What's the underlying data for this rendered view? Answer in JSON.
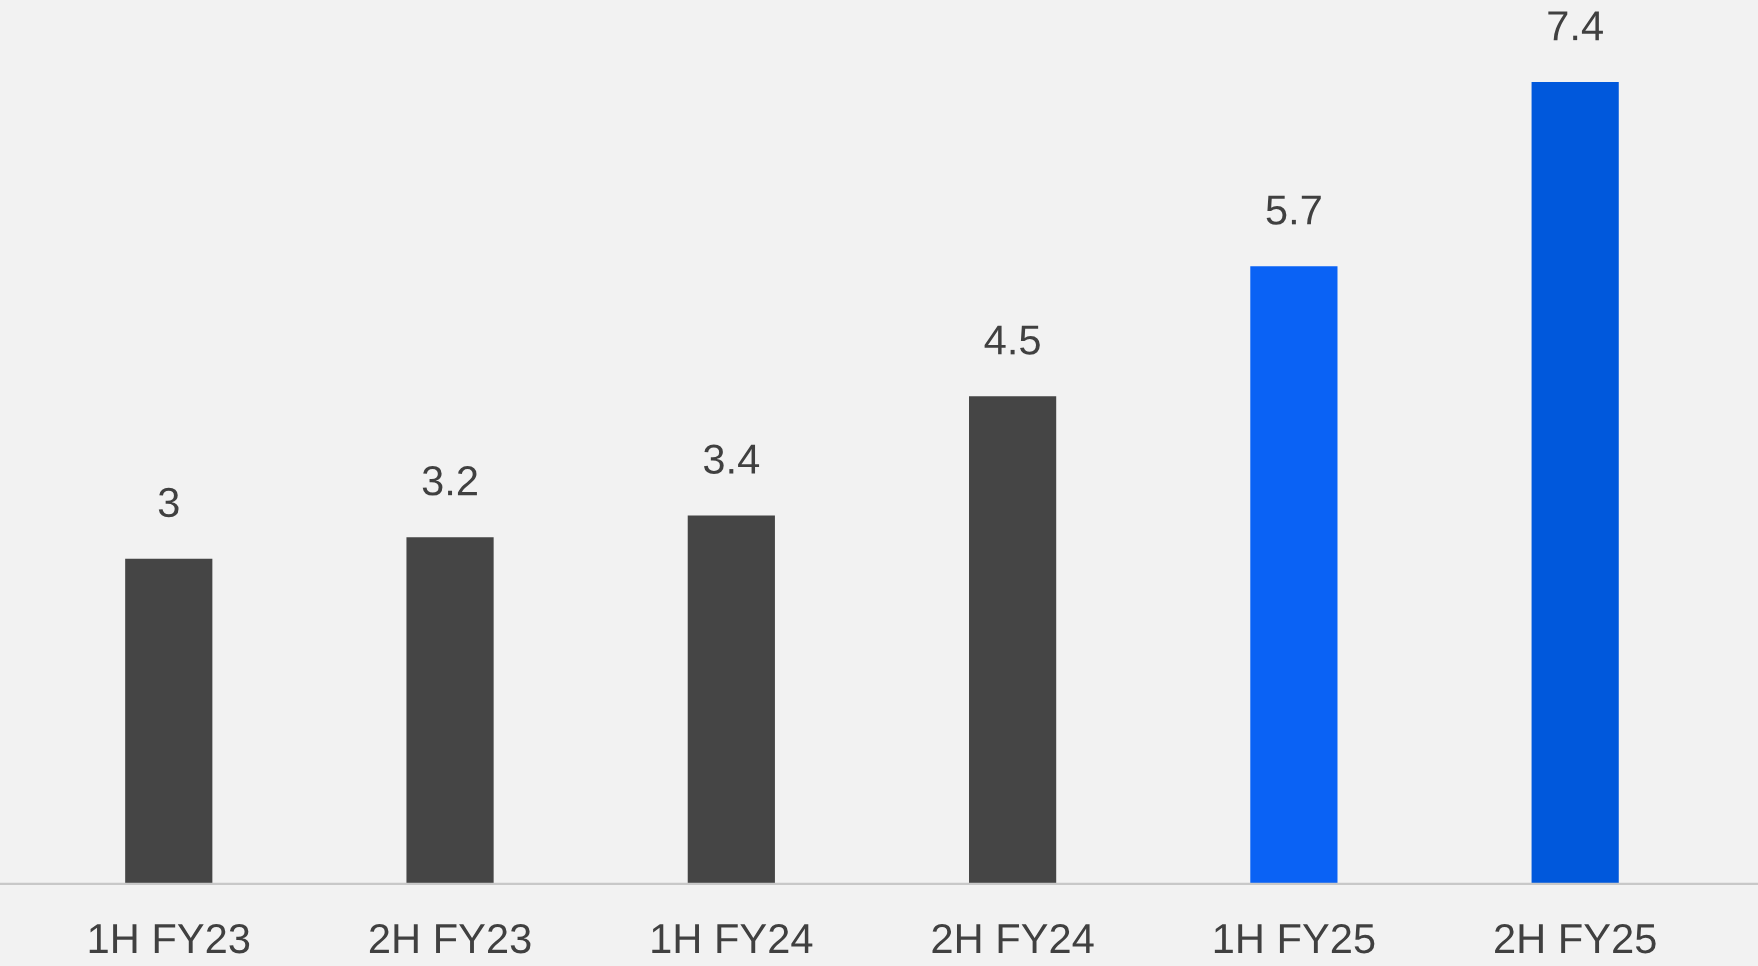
{
  "chart_data": {
    "type": "bar",
    "categories": [
      "1H FY23",
      "2H FY23",
      "1H FY24",
      "2H FY24",
      "1H FY25",
      "2H FY25"
    ],
    "values": [
      3,
      3.2,
      3.4,
      4.5,
      5.7,
      7.4
    ],
    "colors": [
      "#454545",
      "#454545",
      "#454545",
      "#454545",
      "#0a62f5",
      "#0058dc"
    ],
    "data_labels": true,
    "grid": false,
    "legend": false
  }
}
